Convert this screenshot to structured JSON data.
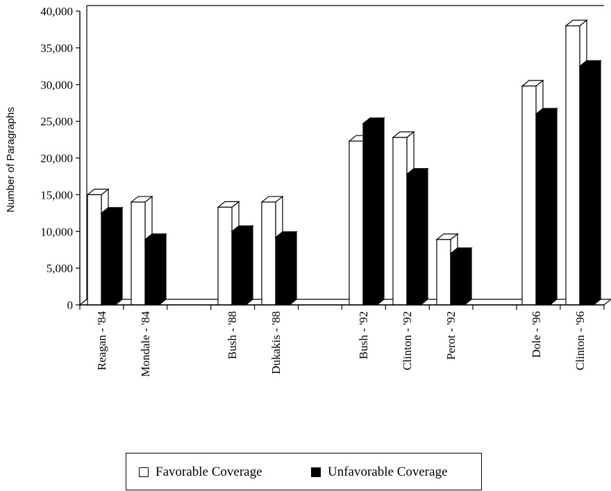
{
  "chart_data": {
    "type": "bar",
    "title": "",
    "xlabel": "",
    "ylabel": "Number of Paragraphs",
    "ylim": [
      0,
      40000
    ],
    "yticks": [
      0,
      5000,
      10000,
      15000,
      20000,
      25000,
      30000,
      35000,
      40000
    ],
    "ytick_labels": [
      "0",
      "5,000",
      "10,000",
      "15,000",
      "20,000",
      "25,000",
      "30,000",
      "35,000",
      "40,000"
    ],
    "categories": [
      "Reagan - '84",
      "Mondale - '84",
      "",
      "Bush - '88",
      "Dukakis - '88",
      "",
      "Bush - '92",
      "Clinton - '92",
      "Perot - '92",
      "",
      "Dole - '96",
      "Clinton - '96"
    ],
    "series": [
      {
        "name": "Favorable Coverage",
        "color": "#ffffff",
        "values": [
          15000,
          14000,
          null,
          13300,
          14000,
          null,
          22300,
          22800,
          8900,
          null,
          29800,
          38000
        ]
      },
      {
        "name": "Unfavorable Coverage",
        "color": "#000000",
        "values": [
          12500,
          8900,
          null,
          10000,
          9200,
          null,
          24700,
          17800,
          7000,
          null,
          26000,
          32500
        ]
      }
    ],
    "grid": false,
    "legend": "bottom"
  }
}
